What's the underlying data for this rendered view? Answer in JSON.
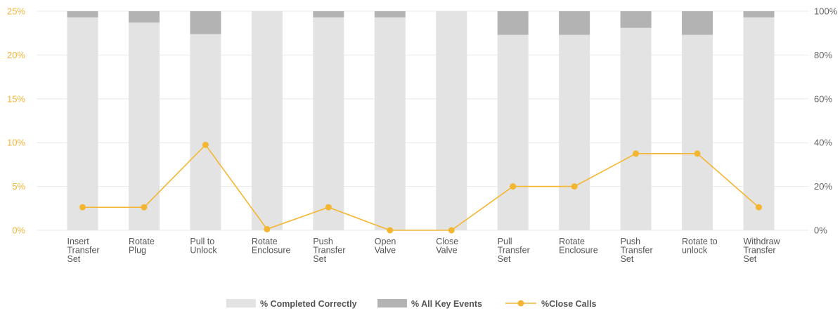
{
  "chart_data": {
    "type": "bar",
    "stacked": true,
    "categories": [
      [
        "Insert",
        "Transfer",
        "Set"
      ],
      [
        "Rotate",
        "Plug"
      ],
      [
        "Pull to",
        "Unlock"
      ],
      [
        "Rotate",
        "Enclosure"
      ],
      [
        "Push",
        "Transfer",
        "Set"
      ],
      [
        "Open",
        "Valve"
      ],
      [
        "Close",
        "Valve"
      ],
      [
        "Pull",
        "Transfer",
        "Set"
      ],
      [
        "Rotate",
        "Enclosure"
      ],
      [
        "Push",
        "Transfer",
        "Set"
      ],
      [
        "Rotate to",
        "unlock"
      ],
      [
        "Withdraw",
        "Transfer",
        "Set"
      ]
    ],
    "series": [
      {
        "name": "% Completed Correctly",
        "type": "bar",
        "axis": "left",
        "values": [
          24.3,
          23.7,
          22.4,
          25.0,
          24.3,
          24.3,
          25.0,
          22.3,
          22.3,
          23.1,
          22.3,
          24.3
        ]
      },
      {
        "name": "% All Key Events",
        "type": "bar",
        "axis": "left",
        "values": [
          0.7,
          1.3,
          2.6,
          0.0,
          0.7,
          0.7,
          0.0,
          2.7,
          2.7,
          1.9,
          2.7,
          0.7
        ]
      },
      {
        "name": "%Close Calls",
        "type": "line",
        "axis": "right",
        "values": [
          10.5,
          10.5,
          39.0,
          0.5,
          10.5,
          0.0,
          0.0,
          20.0,
          20.0,
          35.0,
          35.0,
          10.5
        ]
      }
    ],
    "y_left": {
      "ticks": [
        "0%",
        "5%",
        "10%",
        "15%",
        "20%",
        "25%"
      ],
      "ylim": [
        0,
        25
      ]
    },
    "y_right": {
      "ticks": [
        "0%",
        "20%",
        "40%",
        "60%",
        "80%",
        "100%"
      ],
      "ylim": [
        0,
        100
      ]
    },
    "grid": true,
    "legend": "bottom-center",
    "colors": {
      "completed": "#e3e3e3",
      "key_events": "#b3b3b3",
      "close_calls": "#f4b631",
      "grid": "#e8e8e8",
      "left_ticks": "#f0b43c",
      "right_ticks": "#666666"
    }
  }
}
